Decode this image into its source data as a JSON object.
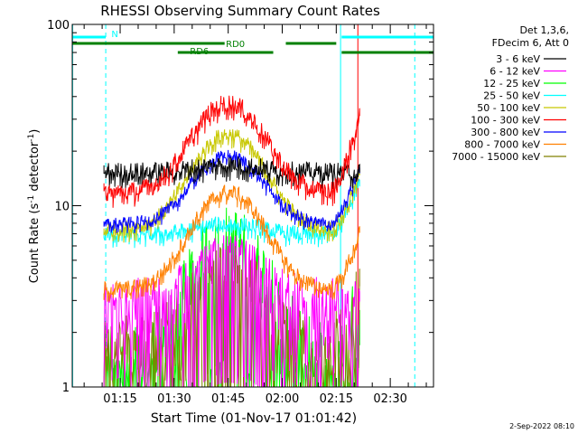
{
  "chart_data": {
    "type": "line",
    "title": "RHESSI Observing Summary Count Rates",
    "xlabel": "Start Time (01-Nov-17 01:01:42)",
    "ylabel": "Count Rate (s",
    "ylabel_sup": "-1",
    "ylabel_tail": " detector",
    "ylabel_end": ")",
    "yscale": "log",
    "ylim": [
      1,
      100
    ],
    "y_ticks": [
      {
        "value": 1,
        "label": "1"
      },
      {
        "value": 10,
        "label": "10"
      },
      {
        "value": 100,
        "label": "100"
      }
    ],
    "xlim_minutes": [
      61.7,
      162.0
    ],
    "x_ticks": [
      {
        "value": 75,
        "label": "01:15"
      },
      {
        "value": 90,
        "label": "01:30"
      },
      {
        "value": 105,
        "label": "01:45"
      },
      {
        "value": 120,
        "label": "02:00"
      },
      {
        "value": 135,
        "label": "02:15"
      },
      {
        "value": 150,
        "label": "02:30"
      }
    ],
    "legend_header": [
      "Det 1,3,6,",
      "FDecim 6, Att 0"
    ],
    "legend_position": "right",
    "series": [
      {
        "name": "3 - 6 keV",
        "color": "#000000",
        "base": 15.5,
        "peak": 17,
        "noise": 0.12,
        "floor": false
      },
      {
        "name": "6 - 12 keV",
        "color": "#ff00ff",
        "base": 3.5,
        "peak": 6,
        "noise": 0.15,
        "floor": true
      },
      {
        "name": "12 - 25 keV",
        "color": "#00ff00",
        "base": 1.6,
        "peak": 7,
        "noise": 0.45,
        "floor": true
      },
      {
        "name": "25 - 50 keV",
        "color": "#00ffff",
        "base": 7.0,
        "peak": 8,
        "noise": 0.1,
        "floor": false
      },
      {
        "name": "50 - 100 keV",
        "color": "#c8c800",
        "base": 7.5,
        "peak": 25,
        "noise": 0.1,
        "floor": false
      },
      {
        "name": "100 - 300 keV",
        "color": "#ff0000",
        "base": 12.0,
        "peak": 37,
        "noise": 0.12,
        "floor": false
      },
      {
        "name": "300 - 800 keV",
        "color": "#0000ff",
        "base": 8.0,
        "peak": 19,
        "noise": 0.08,
        "floor": false
      },
      {
        "name": "800 - 7000 keV",
        "color": "#ff8000",
        "base": 3.5,
        "peak": 12,
        "noise": 0.1,
        "floor": false
      },
      {
        "name": "7000 - 15000 keV",
        "color": "#808000",
        "base": 2.0,
        "peak": 5,
        "noise": 0.25,
        "floor": true
      }
    ],
    "flags": [
      {
        "name": "N",
        "color": "#00ffff",
        "segments": [
          [
            61.7,
            71
          ],
          [
            136.5,
            162
          ]
        ]
      },
      {
        "name": "RD0",
        "color": "#008000",
        "segments": [
          [
            61.7,
            104
          ],
          [
            121,
            135
          ]
        ]
      },
      {
        "name": "RD6",
        "color": "#008000",
        "segments": [
          [
            91,
            117.5
          ],
          [
            136.5,
            162
          ]
        ]
      }
    ],
    "flag_labels": [
      {
        "text": "N",
        "color": "#00ffff",
        "minute": 73.5,
        "row": 0
      },
      {
        "text": "RD0",
        "color": "#008000",
        "minute": 107,
        "row": 1
      },
      {
        "text": "RD6",
        "color": "#008000",
        "minute": 97,
        "row": 2
      }
    ],
    "data_start_minute": 70.5,
    "data_end_minute": 141.5,
    "peak_minute": 105,
    "vlines": [
      {
        "minute": 61.8,
        "color": "#00ffff",
        "style": "solid"
      },
      {
        "minute": 71.0,
        "color": "#00ffff",
        "style": "dashed"
      },
      {
        "minute": 136.2,
        "color": "#00ffff",
        "style": "solid"
      },
      {
        "minute": 156.8,
        "color": "#00ffff",
        "style": "dashed"
      },
      {
        "minute": 141.0,
        "color": "#ff0000",
        "style": "solid"
      }
    ]
  },
  "footer": {
    "date": "2-Sep-2022 08:10"
  }
}
